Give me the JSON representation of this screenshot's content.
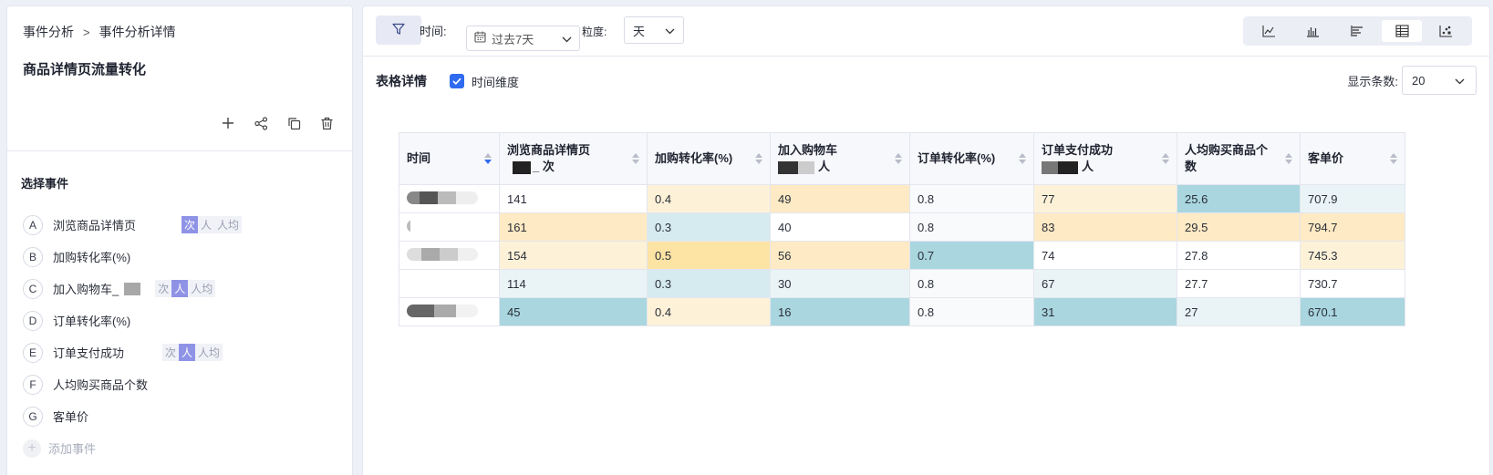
{
  "breadcrumb": {
    "root": "事件分析",
    "separator": ">",
    "current": "事件分析详情"
  },
  "page_title": "商品详情页流量转化",
  "section_title": "选择事件",
  "events": [
    {
      "letter": "A",
      "name": "浏览商品详情页",
      "blurred": false,
      "modes": [
        "次",
        "人",
        "人均"
      ],
      "selected": "次"
    },
    {
      "letter": "B",
      "name": "加购转化率(%)",
      "blurred": false,
      "modes": [],
      "selected": ""
    },
    {
      "letter": "C",
      "name": "加入购物车_",
      "blurred": true,
      "modes": [
        "次",
        "人",
        "人均"
      ],
      "selected": "人"
    },
    {
      "letter": "D",
      "name": "订单转化率(%)",
      "blurred": false,
      "modes": [],
      "selected": ""
    },
    {
      "letter": "E",
      "name": "订单支付成功",
      "blurred": false,
      "modes": [
        "次",
        "人",
        "人均"
      ],
      "selected": "人"
    },
    {
      "letter": "F",
      "name": "人均购买商品个数",
      "blurred": false,
      "modes": [],
      "selected": ""
    },
    {
      "letter": "G",
      "name": "客单价",
      "blurred": false,
      "modes": [],
      "selected": ""
    }
  ],
  "add_event_label": "添加事件",
  "toolbar": {
    "time_label": "时间:",
    "time_value": "过去7天",
    "granularity_label": "粒度:",
    "granularity_value": "天",
    "chart_modes": [
      "line-chart-icon",
      "bar-chart-icon",
      "horizontal-bar-icon",
      "table-icon",
      "scatter-icon"
    ],
    "active_chart_mode": "table-icon"
  },
  "table_section": {
    "title": "表格详情",
    "time_dimension_label": "时间维度",
    "time_dimension_checked": true,
    "rows_label": "显示条数:",
    "rows_value": "20"
  },
  "colors": {
    "accent": "#2f6bf0",
    "teal": "#a9d6df",
    "amber": "#fde3a4",
    "light_amber": "#fdf2d8"
  },
  "table": {
    "columns": [
      {
        "line1": "时间",
        "line2": ""
      },
      {
        "line1": "浏览商品详情页",
        "line2": "_ 次"
      },
      {
        "line1": "加购转化率(%)",
        "line2": ""
      },
      {
        "line1": "加入购物车",
        "line2": "人"
      },
      {
        "line1": "订单转化率(%)",
        "line2": ""
      },
      {
        "line1": "订单支付成功",
        "line2": "人"
      },
      {
        "line1": "人均购买商品个",
        "line2": "数"
      },
      {
        "line1": "客单价",
        "line2": ""
      }
    ],
    "rows": [
      {
        "cells": [
          "",
          "141",
          "0.4",
          "49",
          "0.8",
          "77",
          "25.6",
          "707.9"
        ]
      },
      {
        "cells": [
          "",
          "161",
          "0.3",
          "40",
          "0.8",
          "83",
          "29.5",
          "794.7"
        ]
      },
      {
        "cells": [
          "",
          "154",
          "0.5",
          "56",
          "0.7",
          "74",
          "27.8",
          "745.3"
        ]
      },
      {
        "cells": [
          "",
          "114",
          "0.3",
          "30",
          "0.8",
          "67",
          "27.7",
          "730.7"
        ]
      },
      {
        "cells": [
          "",
          "45",
          "0.4",
          "16",
          "0.8",
          "31",
          "27",
          "670.1"
        ]
      }
    ]
  }
}
